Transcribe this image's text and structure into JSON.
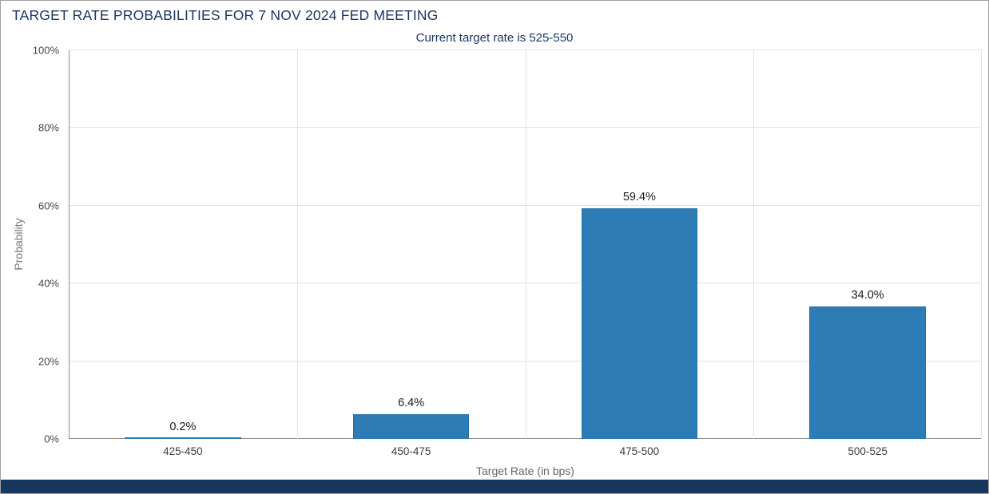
{
  "header": {
    "title": "TARGET RATE PROBABILITIES FOR 7 NOV 2024 FED MEETING"
  },
  "chart_data": {
    "type": "bar",
    "title": "TARGET RATE PROBABILITIES FOR 7 NOV 2024 FED MEETING",
    "subtitle": "Current target rate is 525-550",
    "categories": [
      "425-450",
      "450-475",
      "475-500",
      "500-525"
    ],
    "values": [
      0.2,
      6.4,
      59.4,
      34.0
    ],
    "value_labels": [
      "0.2%",
      "6.4%",
      "59.4%",
      "34.0%"
    ],
    "xlabel": "Target Rate (in bps)",
    "ylabel": "Probability",
    "ylim": [
      0,
      100
    ],
    "yticks": [
      "0%",
      "20%",
      "40%",
      "60%",
      "80%",
      "100%"
    ],
    "grid": true,
    "legend_position": "none",
    "bar_color": "#2e7cb5"
  },
  "colors": {
    "title": "#16355f",
    "bar": "#2e7cb5",
    "footer": "#17375e",
    "grid": "#e2e2e2",
    "axis": "#8c8c8c"
  }
}
